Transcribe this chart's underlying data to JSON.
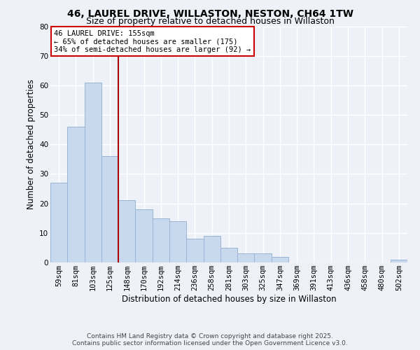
{
  "title": "46, LAUREL DRIVE, WILLASTON, NESTON, CH64 1TW",
  "subtitle": "Size of property relative to detached houses in Willaston",
  "xlabel": "Distribution of detached houses by size in Willaston",
  "ylabel": "Number of detached properties",
  "bar_color": "#c8d9ee",
  "bar_edge_color": "#9ab5d5",
  "background_color": "#eef2f8",
  "grid_color": "#ffffff",
  "categories": [
    "59sqm",
    "81sqm",
    "103sqm",
    "125sqm",
    "148sqm",
    "170sqm",
    "192sqm",
    "214sqm",
    "236sqm",
    "258sqm",
    "281sqm",
    "303sqm",
    "325sqm",
    "347sqm",
    "369sqm",
    "391sqm",
    "413sqm",
    "436sqm",
    "458sqm",
    "480sqm",
    "502sqm"
  ],
  "values": [
    27,
    46,
    61,
    36,
    21,
    18,
    15,
    14,
    8,
    9,
    5,
    3,
    3,
    2,
    0,
    0,
    0,
    0,
    0,
    0,
    1
  ],
  "ylim": [
    0,
    80
  ],
  "yticks": [
    0,
    10,
    20,
    30,
    40,
    50,
    60,
    70,
    80
  ],
  "vline_index": 3.5,
  "vline_color": "#aa0000",
  "annotation_title": "46 LAUREL DRIVE: 155sqm",
  "annotation_line1": "← 65% of detached houses are smaller (175)",
  "annotation_line2": "34% of semi-detached houses are larger (92) →",
  "annotation_box_color": "white",
  "annotation_box_edge": "#cc0000",
  "footer_line1": "Contains HM Land Registry data © Crown copyright and database right 2025.",
  "footer_line2": "Contains public sector information licensed under the Open Government Licence v3.0.",
  "title_fontsize": 10,
  "subtitle_fontsize": 9,
  "axis_label_fontsize": 8.5,
  "tick_fontsize": 7.5,
  "annotation_fontsize": 7.5,
  "footer_fontsize": 6.5
}
